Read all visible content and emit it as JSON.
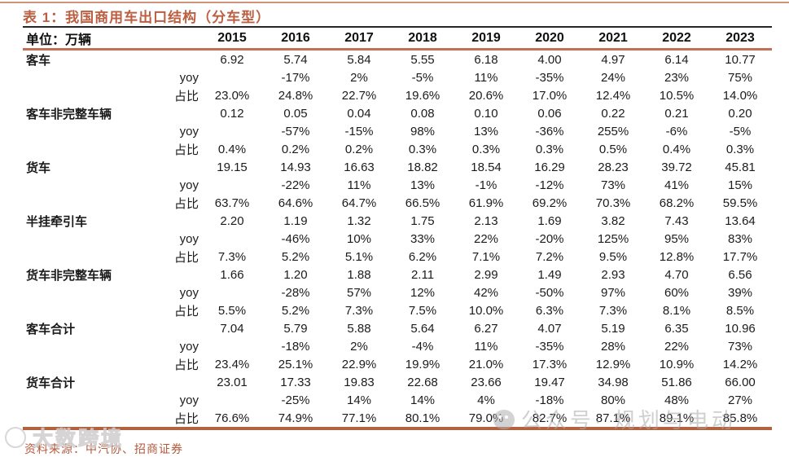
{
  "title": "表 1：我国商用车出口结构（分车型）",
  "table": {
    "unit_label": "单位：万辆",
    "years": [
      "2015",
      "2016",
      "2017",
      "2018",
      "2019",
      "2020",
      "2021",
      "2022",
      "2023"
    ],
    "yoy_label": "yoy",
    "share_label": "占比",
    "groups": [
      {
        "label": "客车",
        "values": [
          "6.92",
          "5.74",
          "5.84",
          "5.55",
          "6.18",
          "4.00",
          "4.97",
          "6.14",
          "10.77"
        ],
        "yoy": [
          "",
          "-17%",
          "2%",
          "-5%",
          "11%",
          "-35%",
          "24%",
          "23%",
          "75%"
        ],
        "share": [
          "23.0%",
          "24.8%",
          "22.7%",
          "19.6%",
          "20.6%",
          "17.0%",
          "12.4%",
          "10.5%",
          "14.0%"
        ]
      },
      {
        "label": "客车非完整车辆",
        "values": [
          "0.12",
          "0.05",
          "0.04",
          "0.08",
          "0.10",
          "0.06",
          "0.22",
          "0.21",
          "0.20"
        ],
        "yoy": [
          "",
          "-57%",
          "-15%",
          "98%",
          "13%",
          "-36%",
          "255%",
          "-6%",
          "-5%"
        ],
        "share": [
          "0.4%",
          "0.2%",
          "0.2%",
          "0.3%",
          "0.3%",
          "0.3%",
          "0.5%",
          "0.4%",
          "0.3%"
        ]
      },
      {
        "label": "货车",
        "values": [
          "19.15",
          "14.93",
          "16.63",
          "18.82",
          "18.54",
          "16.29",
          "28.23",
          "39.72",
          "45.81"
        ],
        "yoy": [
          "",
          "-22%",
          "11%",
          "13%",
          "-1%",
          "-12%",
          "73%",
          "41%",
          "15%"
        ],
        "share": [
          "63.7%",
          "64.6%",
          "64.7%",
          "66.5%",
          "61.9%",
          "69.2%",
          "70.3%",
          "68.2%",
          "59.5%"
        ]
      },
      {
        "label": "半挂牵引车",
        "values": [
          "2.20",
          "1.19",
          "1.32",
          "1.75",
          "2.13",
          "1.69",
          "3.82",
          "7.43",
          "13.64"
        ],
        "yoy": [
          "",
          "-46%",
          "10%",
          "33%",
          "22%",
          "-20%",
          "125%",
          "95%",
          "83%"
        ],
        "share": [
          "7.3%",
          "5.2%",
          "5.1%",
          "6.2%",
          "7.1%",
          "7.2%",
          "9.5%",
          "12.8%",
          "17.7%"
        ]
      },
      {
        "label": "货车非完整车辆",
        "values": [
          "1.66",
          "1.20",
          "1.88",
          "2.11",
          "2.99",
          "1.49",
          "2.93",
          "4.70",
          "6.56"
        ],
        "yoy": [
          "",
          "-28%",
          "57%",
          "12%",
          "42%",
          "-50%",
          "97%",
          "60%",
          "39%"
        ],
        "share": [
          "5.5%",
          "5.2%",
          "7.3%",
          "7.5%",
          "10.0%",
          "6.3%",
          "7.3%",
          "8.1%",
          "8.5%"
        ]
      },
      {
        "label": "客车合计",
        "values": [
          "7.04",
          "5.79",
          "5.88",
          "5.64",
          "6.27",
          "4.07",
          "5.19",
          "6.35",
          "10.96"
        ],
        "yoy": [
          "",
          "-18%",
          "2%",
          "-4%",
          "11%",
          "-35%",
          "28%",
          "22%",
          "73%"
        ],
        "share": [
          "23.4%",
          "25.1%",
          "22.9%",
          "19.9%",
          "21.0%",
          "17.3%",
          "12.9%",
          "10.9%",
          "14.2%"
        ]
      },
      {
        "label": "货车合计",
        "values": [
          "23.01",
          "17.33",
          "19.83",
          "22.68",
          "23.66",
          "19.47",
          "34.98",
          "51.86",
          "66.00"
        ],
        "yoy": [
          "",
          "-25%",
          "14%",
          "14%",
          "4%",
          "-18%",
          "80%",
          "48%",
          "27%"
        ],
        "share": [
          "76.6%",
          "74.9%",
          "77.1%",
          "80.1%",
          "79.0%",
          "82.7%",
          "87.1%",
          "89.1%",
          "85.8%"
        ]
      }
    ]
  },
  "footer": {
    "source": "资料来源：中汽协、招商证券"
  },
  "watermarks": {
    "left_text": "大数跨境",
    "right_text": "公众号· 规划与电动"
  },
  "colors": {
    "accent": "#ba5f41",
    "header_rule_dark": "#262626",
    "header_rule_brown": "#bf7155",
    "bottom_rule": "#b2623f",
    "watermark_gray": "#c6c4c5"
  }
}
